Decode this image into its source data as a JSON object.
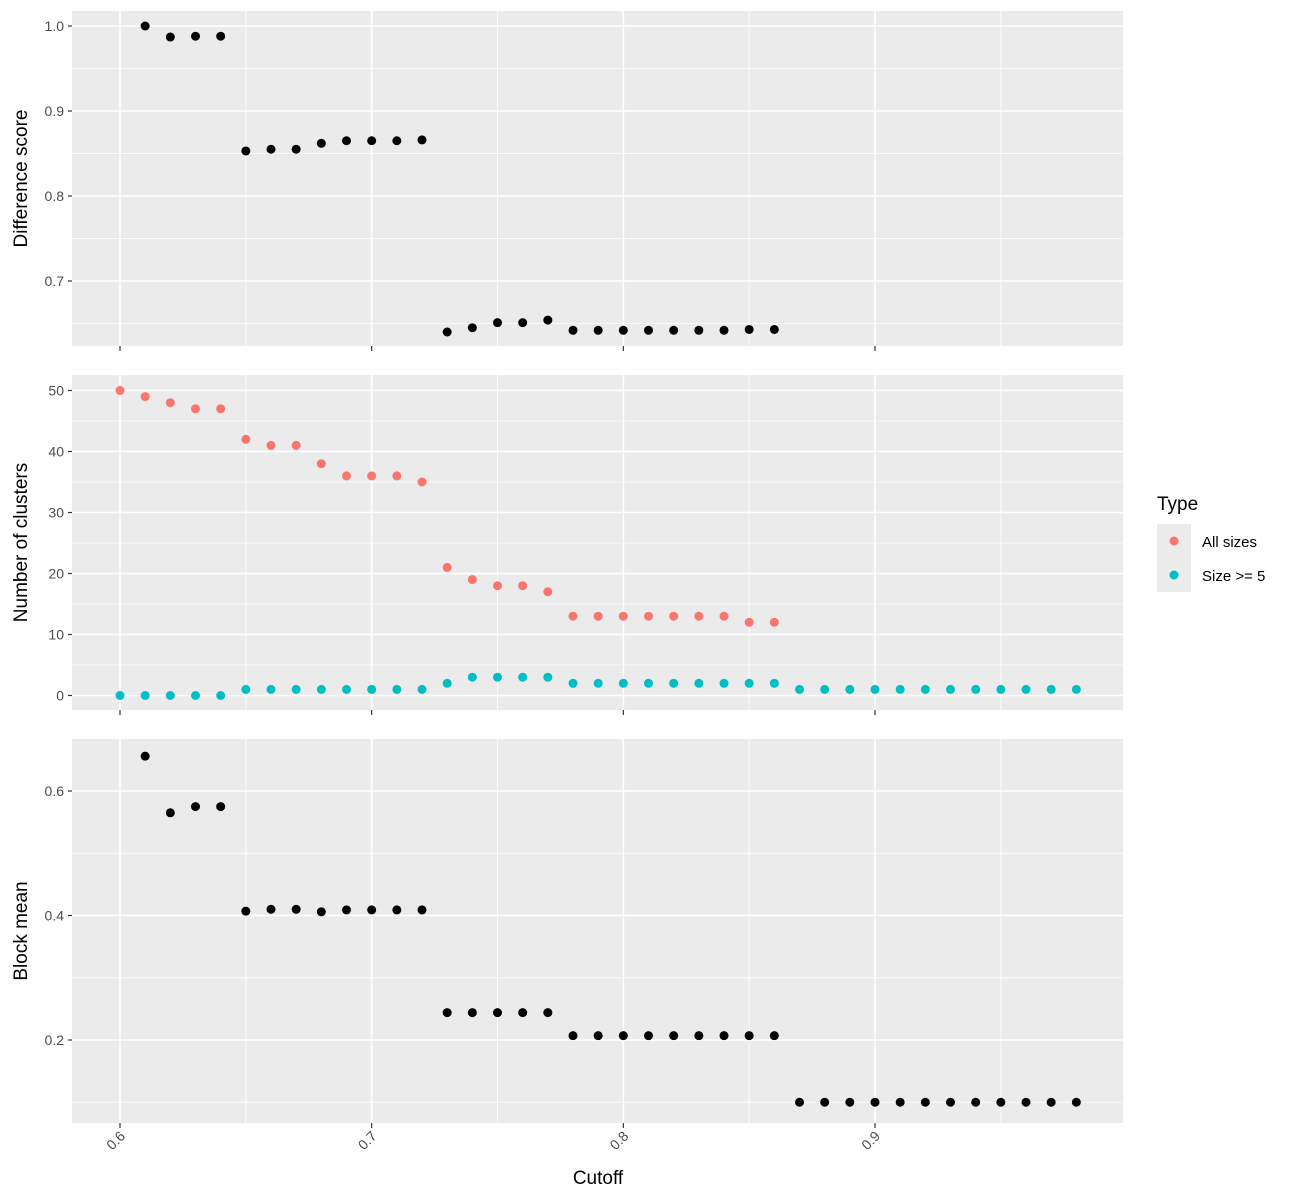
{
  "colors": {
    "panel_bg": "#EBEBEB",
    "grid_major": "#FFFFFF",
    "point_default": "#000000",
    "all_sizes": "#F8766D",
    "size_ge_5": "#00BFC4"
  },
  "chart_data": {
    "type": "scatter",
    "layout": "three vertically stacked panels sharing x axis",
    "xlabel": "Cutoff",
    "x_ticks": [
      "0.6",
      "0.7",
      "0.8",
      "0.9"
    ],
    "xlim": [
      0.6,
      0.98
    ],
    "grid": true,
    "legend": {
      "title": "Type",
      "placement": "right",
      "entries": [
        "All sizes",
        "Size >= 5"
      ]
    },
    "panels": [
      {
        "ylabel": "Difference score",
        "y_ticks": [
          "0.7",
          "0.8",
          "0.9",
          "1.0"
        ],
        "ylim": [
          0.625,
          1.02
        ],
        "series": [
          {
            "x": [
              0.61,
              0.62,
              0.63,
              0.64,
              0.65,
              0.66,
              0.67,
              0.68,
              0.69,
              0.7,
              0.71,
              0.72,
              0.73,
              0.74,
              0.75,
              0.76,
              0.77,
              0.78,
              0.79,
              0.8,
              0.81,
              0.82,
              0.83,
              0.84,
              0.85,
              0.86
            ],
            "y": [
              1.0,
              0.987,
              0.988,
              0.988,
              0.853,
              0.855,
              0.855,
              0.862,
              0.865,
              0.865,
              0.865,
              0.866,
              0.64,
              0.645,
              0.651,
              0.651,
              0.654,
              0.642,
              0.642,
              0.642,
              0.642,
              0.642,
              0.642,
              0.642,
              0.643,
              0.643
            ]
          }
        ]
      },
      {
        "ylabel": "Number of clusters",
        "y_ticks": [
          "0",
          "10",
          "20",
          "30",
          "40",
          "50"
        ],
        "ylim": [
          -2.5,
          52.5
        ],
        "series": [
          {
            "name": "All sizes",
            "x": [
              0.6,
              0.61,
              0.62,
              0.63,
              0.64,
              0.65,
              0.66,
              0.67,
              0.68,
              0.69,
              0.7,
              0.71,
              0.72,
              0.73,
              0.74,
              0.75,
              0.76,
              0.77,
              0.78,
              0.79,
              0.8,
              0.81,
              0.82,
              0.83,
              0.84,
              0.85,
              0.86
            ],
            "y": [
              50,
              49,
              48,
              47,
              47,
              42,
              41,
              41,
              38,
              36,
              36,
              36,
              35,
              21,
              19,
              18,
              18,
              17,
              13,
              13,
              13,
              13,
              13,
              13,
              13,
              12,
              12
            ]
          },
          {
            "name": "Size >= 5",
            "x": [
              0.6,
              0.61,
              0.62,
              0.63,
              0.64,
              0.65,
              0.66,
              0.67,
              0.68,
              0.69,
              0.7,
              0.71,
              0.72,
              0.73,
              0.74,
              0.75,
              0.76,
              0.77,
              0.78,
              0.79,
              0.8,
              0.81,
              0.82,
              0.83,
              0.84,
              0.85,
              0.86,
              0.87,
              0.88,
              0.89,
              0.9,
              0.91,
              0.92,
              0.93,
              0.94,
              0.95,
              0.96,
              0.97,
              0.98
            ],
            "y": [
              0,
              0,
              0,
              0,
              0,
              1,
              1,
              1,
              1,
              1,
              1,
              1,
              1,
              2,
              3,
              3,
              3,
              3,
              2,
              2,
              2,
              2,
              2,
              2,
              2,
              2,
              2,
              1,
              1,
              1,
              1,
              1,
              1,
              1,
              1,
              1,
              1,
              1,
              1
            ]
          }
        ]
      },
      {
        "ylabel": "Block mean",
        "y_ticks": [
          "0.2",
          "0.4",
          "0.6"
        ],
        "ylim": [
          0.075,
          0.685
        ],
        "series": [
          {
            "x": [
              0.61,
              0.62,
              0.63,
              0.64,
              0.65,
              0.66,
              0.67,
              0.68,
              0.69,
              0.7,
              0.71,
              0.72,
              0.73,
              0.74,
              0.75,
              0.76,
              0.77,
              0.78,
              0.79,
              0.8,
              0.81,
              0.82,
              0.83,
              0.84,
              0.85,
              0.86,
              0.87,
              0.88,
              0.89,
              0.9,
              0.91,
              0.92,
              0.93,
              0.94,
              0.95,
              0.96,
              0.97,
              0.98
            ],
            "y": [
              0.656,
              0.565,
              0.575,
              0.575,
              0.407,
              0.41,
              0.41,
              0.406,
              0.409,
              0.409,
              0.409,
              0.409,
              0.244,
              0.244,
              0.244,
              0.244,
              0.244,
              0.207,
              0.207,
              0.207,
              0.207,
              0.207,
              0.207,
              0.207,
              0.207,
              0.207,
              0.1,
              0.1,
              0.1,
              0.1,
              0.1,
              0.1,
              0.1,
              0.1,
              0.1,
              0.1,
              0.1,
              0.1
            ]
          }
        ]
      }
    ]
  }
}
